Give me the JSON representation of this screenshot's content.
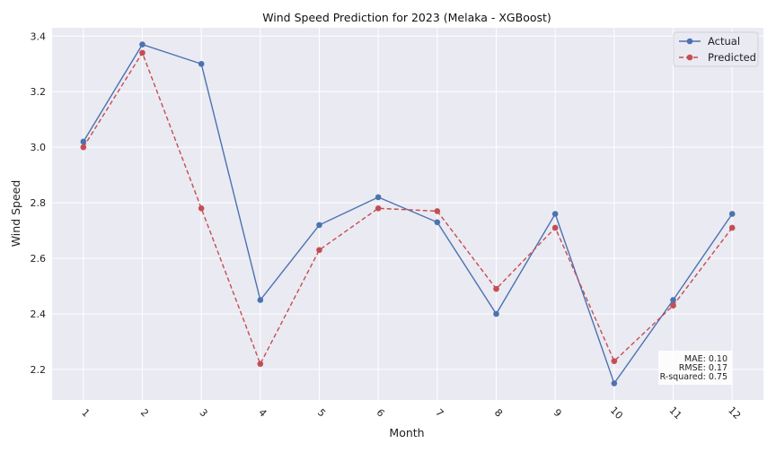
{
  "chart_data": {
    "type": "line",
    "title": "Wind Speed Prediction for 2023 (Melaka - XGBoost)",
    "xlabel": "Month",
    "ylabel": "Wind Speed",
    "x": [
      1,
      2,
      3,
      4,
      5,
      6,
      7,
      8,
      9,
      10,
      11,
      12
    ],
    "ylim": [
      2.09,
      3.43
    ],
    "yticks": [
      2.2,
      2.4,
      2.6,
      2.8,
      3.0,
      3.2,
      3.4
    ],
    "ytick_labels": [
      "2.2",
      "2.4",
      "2.6",
      "2.8",
      "3.0",
      "3.2",
      "3.4"
    ],
    "grid": true,
    "legend_position": "top-right",
    "series": [
      {
        "name": "Actual",
        "color": "#4c72b0",
        "line_style": "solid",
        "marker": "circle",
        "values": [
          3.02,
          3.37,
          3.3,
          2.45,
          2.72,
          2.82,
          2.73,
          2.4,
          2.76,
          2.15,
          2.45,
          2.76
        ]
      },
      {
        "name": "Predicted",
        "color": "#c44e52",
        "line_style": "dashed",
        "marker": "circle",
        "values": [
          3.0,
          3.34,
          2.78,
          2.22,
          2.63,
          2.78,
          2.77,
          2.49,
          2.71,
          2.23,
          2.43,
          2.71
        ]
      }
    ],
    "annotations": [
      "MAE: 0.10",
      "RMSE: 0.17",
      "R-squared: 0.75"
    ]
  }
}
